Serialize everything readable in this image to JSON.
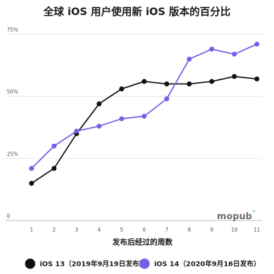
{
  "chart_data": {
    "type": "line",
    "title": "全球 iOS 用户使用新 iOS 版本的百分比",
    "xlabel": "发布后经过的周数",
    "ylabel": "",
    "x": [
      1,
      2,
      3,
      4,
      5,
      6,
      7,
      8,
      9,
      10,
      11
    ],
    "ylim": [
      0,
      75
    ],
    "yticks": [
      0,
      25,
      50,
      75
    ],
    "ytick_labels": [
      "0",
      "25%",
      "50%",
      "75%"
    ],
    "grid": "horizontal",
    "legend": "bottom",
    "series": [
      {
        "name": "iOS 13（2019年9月19日发布）",
        "color": "#111111",
        "values": [
          15,
          21,
          35,
          47,
          53,
          56,
          55,
          55,
          56,
          58,
          57
        ]
      },
      {
        "name": "iOS 14（2020年9月16日发布）",
        "color": "#7b5ce6",
        "values": [
          21,
          30,
          36,
          38,
          41,
          42,
          49,
          65,
          69,
          67,
          71
        ]
      }
    ]
  },
  "watermark": {
    "text": "mopub",
    "mark": "°",
    "color": "#5fc8e0"
  }
}
